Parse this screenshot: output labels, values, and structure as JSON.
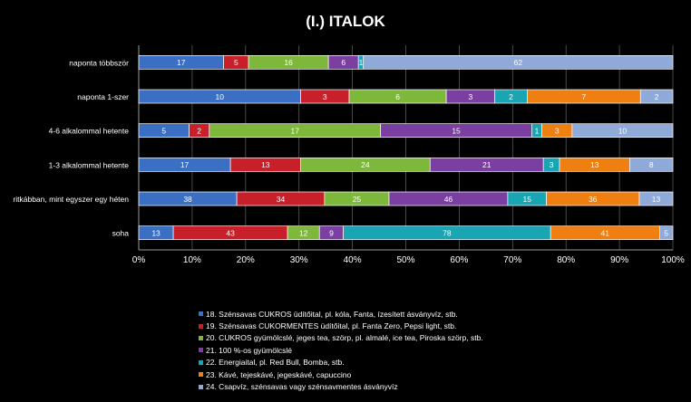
{
  "chart_data": {
    "type": "bar",
    "orientation": "horizontal",
    "stacked": "percent",
    "title": "(I.) ITALOK",
    "xlabel": "",
    "ylabel": "",
    "x_ticks": [
      "0%",
      "10%",
      "20%",
      "30%",
      "40%",
      "50%",
      "60%",
      "70%",
      "80%",
      "90%",
      "100%"
    ],
    "xlim": [
      0,
      100
    ],
    "grid": "vertical",
    "legend_position": "bottom",
    "categories": [
      "naponta többször",
      "naponta 1-szer",
      "4-6 alkalommal hetente",
      "1-3 alkalommal hetente",
      "ritkábban, mint egyszer egy héten",
      "soha"
    ],
    "series": [
      {
        "name": "18. Szénsavas CUKROS üdítőital,  pl. kóla, Fanta, ízesített  ásványvíz, stb.",
        "color": "#3A6FC4",
        "values": [
          17,
          10,
          5,
          17,
          38,
          13
        ]
      },
      {
        "name": "19. Szénsavas CUKORMENTES üdítőital,  pl.  Fanta Zero, Pepsi light, stb.",
        "color": "#C8202A",
        "values": [
          5,
          3,
          2,
          13,
          34,
          43
        ]
      },
      {
        "name": "20. CUKROS gyümölcslé, jeges tea,  szörp,  pl. almalé, ice tea, Piroska szörp,  stb.",
        "color": "#7DB83A",
        "values": [
          16,
          6,
          17,
          24,
          25,
          12
        ]
      },
      {
        "name": "21. 100 %-os gyümölcslé",
        "color": "#7A3FA0",
        "values": [
          6,
          3,
          15,
          21,
          46,
          9
        ]
      },
      {
        "name": "22. Energiaital,  pl. Red Bull,  Bomba,  stb.",
        "color": "#1AA5B5",
        "values": [
          1,
          2,
          1,
          3,
          15,
          78
        ]
      },
      {
        "name": "23. Kávé, tejeskávé, jegeskávé, capuccino",
        "color": "#F07F12",
        "values": [
          0,
          7,
          3,
          13,
          36,
          41
        ]
      },
      {
        "name": "24. Csapvíz,  szénsavas vagy szénsavmentes ásványvíz",
        "color": "#8FA9D8",
        "values": [
          62,
          2,
          10,
          8,
          13,
          5
        ]
      }
    ]
  }
}
